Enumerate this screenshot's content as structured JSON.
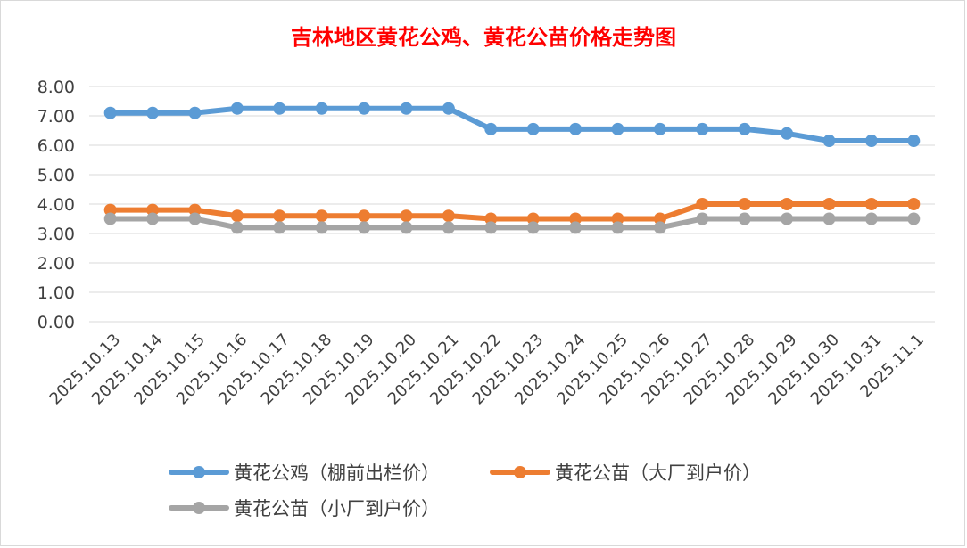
{
  "chart_data": {
    "type": "line",
    "title": "吉林地区黄花公鸡、黄花公苗价格走势图",
    "title_color": "#ff0000",
    "xlabel": "",
    "ylabel": "",
    "ylim": [
      0,
      8
    ],
    "y_ticks": [
      "0.00",
      "1.00",
      "2.00",
      "3.00",
      "4.00",
      "5.00",
      "6.00",
      "7.00",
      "8.00"
    ],
    "y_tick_values": [
      0,
      1,
      2,
      3,
      4,
      5,
      6,
      7,
      8
    ],
    "grid": true,
    "legend_position": "bottom",
    "categories": [
      "2025.10.13",
      "2025.10.14",
      "2025.10.15",
      "2025.10.16",
      "2025.10.17",
      "2025.10.18",
      "2025.10.19",
      "2025.10.20",
      "2025.10.21",
      "2025.10.22",
      "2025.10.23",
      "2025.10.24",
      "2025.10.25",
      "2025.10.26",
      "2025.10.27",
      "2025.10.28",
      "2025.10.29",
      "2025.10.30",
      "2025.10.31",
      "2025.11.1"
    ],
    "series": [
      {
        "name": "黄花公鸡（棚前出栏价）",
        "color": "#5b9bd5",
        "values": [
          7.1,
          7.1,
          7.1,
          7.25,
          7.25,
          7.25,
          7.25,
          7.25,
          7.25,
          6.55,
          6.55,
          6.55,
          6.55,
          6.55,
          6.55,
          6.55,
          6.4,
          6.15,
          6.15,
          6.15
        ]
      },
      {
        "name": "黄花公苗（大厂到户价）",
        "color": "#ed7d31",
        "values": [
          3.8,
          3.8,
          3.8,
          3.6,
          3.6,
          3.6,
          3.6,
          3.6,
          3.6,
          3.5,
          3.5,
          3.5,
          3.5,
          3.5,
          4.0,
          4.0,
          4.0,
          4.0,
          4.0,
          4.0
        ]
      },
      {
        "name": "黄花公苗（小厂到户价）",
        "color": "#a5a5a5",
        "values": [
          3.5,
          3.5,
          3.5,
          3.2,
          3.2,
          3.2,
          3.2,
          3.2,
          3.2,
          3.2,
          3.2,
          3.2,
          3.2,
          3.2,
          3.5,
          3.5,
          3.5,
          3.5,
          3.5,
          3.5
        ]
      }
    ]
  }
}
